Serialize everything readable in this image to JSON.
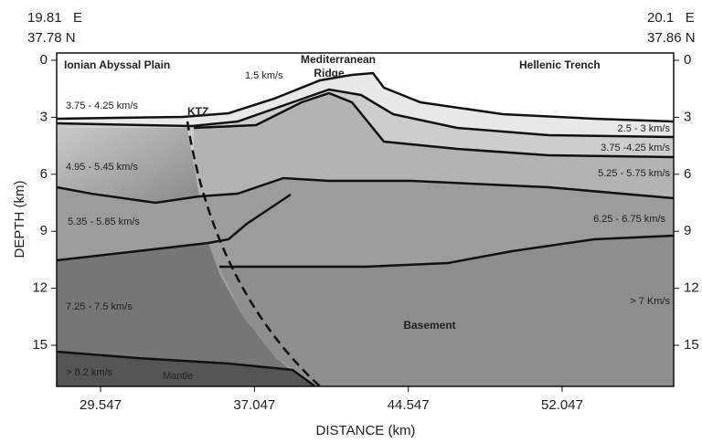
{
  "corners": {
    "left": {
      "lon": "19.81   E",
      "lat": "37.78 N"
    },
    "right": {
      "lon": "20.1   E",
      "lat": "37.86 N"
    }
  },
  "axes": {
    "x_label": "DISTANCE (km)",
    "y_label": "DEPTH (km)",
    "xticks": [
      29.547,
      37.047,
      44.547,
      52.047
    ],
    "yticks": [
      0,
      3,
      6,
      9,
      12,
      15
    ]
  },
  "regions": {
    "ionian": "Ionian Abyssal Plain",
    "ridge": [
      "Mediterranean",
      "Ridge"
    ],
    "hellenic": "Hellenic Trench",
    "ktz": "KTZ",
    "basement": "Basement",
    "mantle": "Mantle"
  },
  "velocities": {
    "water": "1.5 km/s",
    "left_top": "3.75 - 4.25 km/s",
    "left_2": "4.95 - 5.45 km/s",
    "left_3": "5.35 - 5.85 km/s",
    "left_4": "7.25 - 7.5 km/s",
    "left_mantle": "> 8.2 km/s",
    "right_1": "2.5 - 3 km/s",
    "right_2": "3.75 -4.25 km/s",
    "right_3": "5.25 - 5.75 km/s",
    "right_4": "6.25 - 6.75 km/s",
    "right_basement": "> 7 Km/s"
  }
}
